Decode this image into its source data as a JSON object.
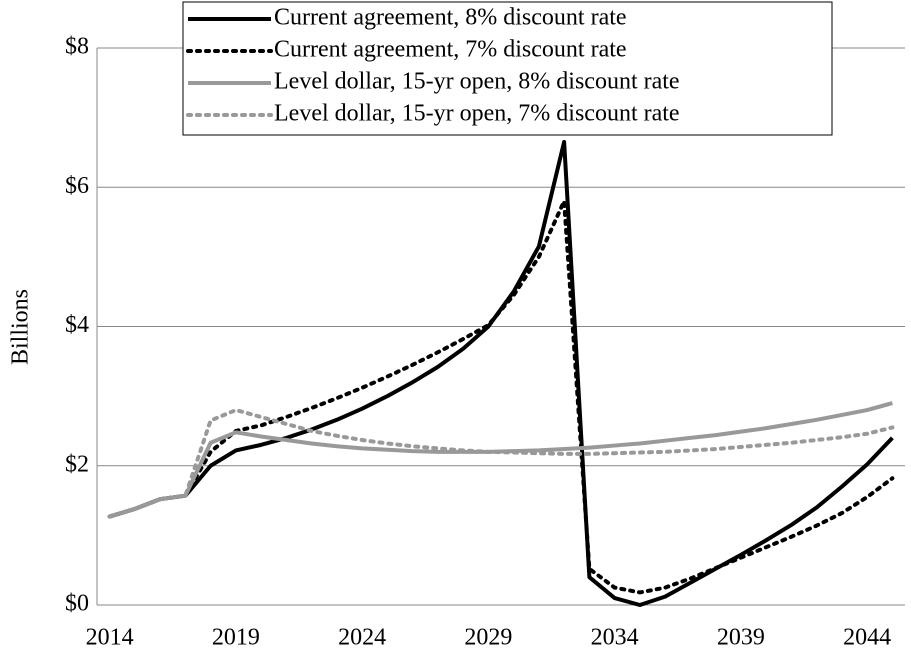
{
  "chart_data": {
    "type": "line",
    "y_label": "Billions",
    "categories": [
      "2014",
      null,
      null,
      null,
      null,
      "2019",
      null,
      null,
      null,
      null,
      "2024",
      null,
      null,
      null,
      null,
      "2029",
      null,
      null,
      null,
      null,
      "2034",
      null,
      null,
      null,
      null,
      "2039",
      null,
      null,
      null,
      null,
      "2044",
      null
    ],
    "series": [
      {
        "name": "Current agreement, 8% discount rate",
        "color": "#000000",
        "dotted": false,
        "values": [
          1.27,
          1.38,
          1.52,
          1.57,
          2.0,
          2.22,
          2.3,
          2.4,
          2.52,
          2.66,
          2.82,
          3.0,
          3.2,
          3.42,
          3.68,
          4.0,
          4.5,
          5.15,
          6.65,
          0.4,
          0.1,
          0.0,
          0.12,
          0.32,
          0.52,
          0.72,
          0.93,
          1.15,
          1.4,
          1.7,
          2.02,
          2.4
        ]
      },
      {
        "name": "Current agreement, 7% discount rate",
        "color": "#000000",
        "dotted": true,
        "values": [
          1.27,
          1.38,
          1.52,
          1.57,
          2.2,
          2.5,
          2.58,
          2.7,
          2.83,
          2.97,
          3.12,
          3.28,
          3.45,
          3.63,
          3.82,
          4.02,
          4.45,
          5.0,
          5.8,
          0.52,
          0.25,
          0.18,
          0.25,
          0.38,
          0.53,
          0.68,
          0.83,
          0.98,
          1.14,
          1.32,
          1.55,
          1.82
        ]
      },
      {
        "name": "Level dollar, 15-yr open, 8% discount rate",
        "color": "#999999",
        "dotted": false,
        "values": [
          1.27,
          1.38,
          1.52,
          1.57,
          2.33,
          2.48,
          2.42,
          2.37,
          2.32,
          2.28,
          2.25,
          2.23,
          2.21,
          2.2,
          2.2,
          2.2,
          2.21,
          2.22,
          2.24,
          2.26,
          2.29,
          2.32,
          2.36,
          2.4,
          2.44,
          2.49,
          2.54,
          2.6,
          2.66,
          2.73,
          2.8,
          2.9
        ]
      },
      {
        "name": "Level dollar, 15-yr open, 7% discount rate",
        "color": "#999999",
        "dotted": true,
        "values": [
          1.27,
          1.38,
          1.52,
          1.57,
          2.65,
          2.8,
          2.7,
          2.6,
          2.5,
          2.43,
          2.37,
          2.32,
          2.28,
          2.25,
          2.22,
          2.2,
          2.19,
          2.18,
          2.17,
          2.17,
          2.18,
          2.19,
          2.2,
          2.22,
          2.24,
          2.27,
          2.3,
          2.33,
          2.37,
          2.41,
          2.46,
          2.55
        ]
      }
    ],
    "ylim": [
      0,
      8
    ],
    "yticks": [
      {
        "value": 0,
        "label": "$0"
      },
      {
        "value": 2,
        "label": "$2"
      },
      {
        "value": 4,
        "label": "$4"
      },
      {
        "value": 6,
        "label": "$6"
      },
      {
        "value": 8,
        "label": "$8"
      }
    ],
    "grid": true,
    "legend": "top"
  }
}
